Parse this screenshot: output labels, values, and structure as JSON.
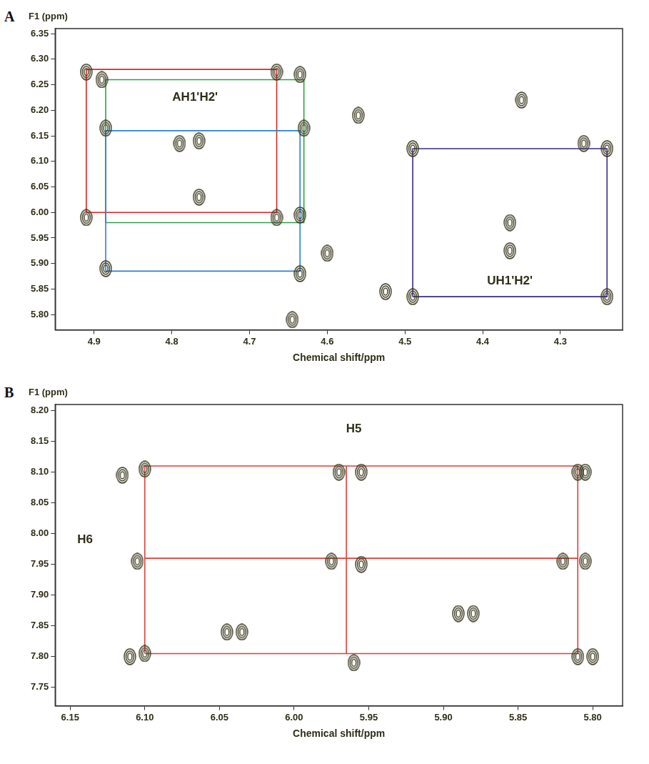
{
  "chart_data": [
    {
      "panel": "A",
      "type": "scatter",
      "x_label": "Chemical shift/ppm",
      "y_label": "F1 (ppm)",
      "xlim": [
        4.95,
        4.22
      ],
      "ylim": [
        5.77,
        6.36
      ],
      "xticks": [
        4.9,
        4.8,
        4.7,
        4.6,
        4.5,
        4.4,
        4.3
      ],
      "yticks": [
        {
          "value": 5.8,
          "label": "5.80"
        },
        {
          "value": 5.85,
          "label": "5.85"
        },
        {
          "value": 5.9,
          "label": "5.90"
        },
        {
          "value": 5.95,
          "label": "5.95"
        },
        {
          "value": 6.0,
          "label": "6.00"
        },
        {
          "value": 6.05,
          "label": "6.05"
        },
        {
          "value": 6.1,
          "label": "6.10"
        },
        {
          "value": 6.15,
          "label": "6.15"
        },
        {
          "value": 6.2,
          "label": "6.20"
        },
        {
          "value": 6.25,
          "label": "6.25"
        },
        {
          "value": 6.3,
          "label": "6.30"
        },
        {
          "value": 6.35,
          "label": "6.35"
        }
      ],
      "grid": false,
      "series": [
        {
          "type": "scatter",
          "marker": "contour",
          "color": "#3b3a1f",
          "values": [
            [
              4.885,
              5.89
            ],
            [
              4.91,
              5.99
            ],
            [
              4.885,
              6.165
            ],
            [
              4.91,
              6.275
            ],
            [
              4.89,
              6.26
            ],
            [
              4.635,
              5.88
            ],
            [
              4.665,
              5.99
            ],
            [
              4.635,
              5.995
            ],
            [
              4.63,
              6.165
            ],
            [
              4.665,
              6.275
            ],
            [
              4.635,
              6.27
            ],
            [
              4.6,
              5.92
            ],
            [
              4.645,
              5.79
            ],
            [
              4.765,
              6.03
            ],
            [
              4.79,
              6.135
            ],
            [
              4.765,
              6.14
            ],
            [
              4.56,
              6.19
            ],
            [
              4.525,
              5.845
            ],
            [
              4.49,
              5.835
            ],
            [
              4.24,
              5.835
            ],
            [
              4.49,
              6.125
            ],
            [
              4.24,
              6.125
            ],
            [
              4.365,
              5.98
            ],
            [
              4.35,
              6.22
            ],
            [
              4.27,
              6.135
            ],
            [
              4.365,
              5.925
            ]
          ]
        },
        {
          "type": "line",
          "line_style": "solid",
          "color": "#2a7fd4",
          "values": [
            [
              4.885,
              5.885
            ],
            [
              4.635,
              5.885
            ],
            [
              4.635,
              6.16
            ],
            [
              4.885,
              6.16
            ],
            [
              4.885,
              5.885
            ]
          ]
        },
        {
          "type": "line",
          "line_style": "solid",
          "color": "#2ca048",
          "values": [
            [
              4.885,
              5.98
            ],
            [
              4.63,
              5.98
            ],
            [
              4.63,
              6.26
            ],
            [
              4.885,
              6.26
            ],
            [
              4.885,
              5.98
            ]
          ]
        },
        {
          "type": "line",
          "line_style": "solid",
          "color": "#d62728",
          "values": [
            [
              4.91,
              6.0
            ],
            [
              4.665,
              6.0
            ],
            [
              4.665,
              6.28
            ],
            [
              4.91,
              6.28
            ],
            [
              4.91,
              6.0
            ]
          ]
        },
        {
          "type": "line",
          "line_style": "solid",
          "color": "#3a2a8c",
          "values": [
            [
              4.49,
              5.835
            ],
            [
              4.24,
              5.835
            ],
            [
              4.24,
              6.125
            ],
            [
              4.49,
              6.125
            ],
            [
              4.49,
              5.835
            ]
          ]
        }
      ],
      "annotations": [
        {
          "text": "AH1'H2'",
          "x": 4.77,
          "y": 6.225
        },
        {
          "text": "UH1'H2'",
          "x": 4.365,
          "y": 5.865
        }
      ]
    },
    {
      "panel": "B",
      "type": "scatter",
      "x_label": "Chemical shift/ppm",
      "y_label": "F1 (ppm)",
      "xlim": [
        6.16,
        5.78
      ],
      "ylim": [
        7.72,
        8.21
      ],
      "xticks": [
        {
          "value": 6.15,
          "label": "6.15"
        },
        {
          "value": 6.1,
          "label": "6.10"
        },
        {
          "value": 6.05,
          "label": "6.05"
        },
        {
          "value": 6.0,
          "label": "6.00"
        },
        {
          "value": 5.95,
          "label": "5.95"
        },
        {
          "value": 5.9,
          "label": "5.90"
        },
        {
          "value": 5.85,
          "label": "5.85"
        },
        {
          "value": 5.8,
          "label": "5.80"
        }
      ],
      "yticks": [
        {
          "value": 7.75,
          "label": "7.75"
        },
        {
          "value": 7.8,
          "label": "7.80"
        },
        {
          "value": 7.85,
          "label": "7.85"
        },
        {
          "value": 7.9,
          "label": "7.90"
        },
        {
          "value": 7.95,
          "label": "7.95"
        },
        {
          "value": 8.0,
          "label": "8.00"
        },
        {
          "value": 8.05,
          "label": "8.05"
        },
        {
          "value": 8.1,
          "label": "8.10"
        },
        {
          "value": 8.15,
          "label": "8.15"
        },
        {
          "value": 8.2,
          "label": "8.20"
        }
      ],
      "grid": false,
      "series": [
        {
          "type": "scatter",
          "marker": "contour",
          "color": "#3b3a1f",
          "values": [
            [
              6.11,
              7.8
            ],
            [
              6.1,
              7.805
            ],
            [
              6.105,
              7.955
            ],
            [
              6.115,
              8.095
            ],
            [
              6.1,
              8.105
            ],
            [
              5.96,
              7.79
            ],
            [
              5.955,
              7.95
            ],
            [
              5.975,
              7.955
            ],
            [
              5.97,
              8.1
            ],
            [
              5.955,
              8.1
            ],
            [
              5.81,
              7.8
            ],
            [
              5.8,
              7.8
            ],
            [
              5.805,
              7.955
            ],
            [
              5.82,
              7.955
            ],
            [
              5.81,
              8.1
            ],
            [
              5.805,
              8.1
            ],
            [
              6.045,
              7.84
            ],
            [
              6.035,
              7.84
            ],
            [
              5.89,
              7.87
            ],
            [
              5.88,
              7.87
            ]
          ]
        },
        {
          "type": "line",
          "line_style": "solid",
          "color": "#d8413a",
          "values": [
            [
              6.1,
              7.805
            ],
            [
              5.81,
              7.805
            ],
            [
              5.81,
              8.11
            ],
            [
              6.1,
              8.11
            ],
            [
              6.1,
              7.805
            ]
          ]
        },
        {
          "type": "line",
          "line_style": "solid",
          "color": "#d8413a",
          "values": [
            [
              6.1,
              7.96
            ],
            [
              5.81,
              7.96
            ]
          ]
        },
        {
          "type": "line",
          "line_style": "solid",
          "color": "#d8413a",
          "values": [
            [
              5.965,
              7.805
            ],
            [
              5.965,
              8.11
            ]
          ]
        }
      ],
      "annotations": [
        {
          "text": "H6",
          "x": 6.14,
          "y": 7.99
        },
        {
          "text": "H5",
          "x": 5.96,
          "y": 8.17
        }
      ]
    }
  ]
}
